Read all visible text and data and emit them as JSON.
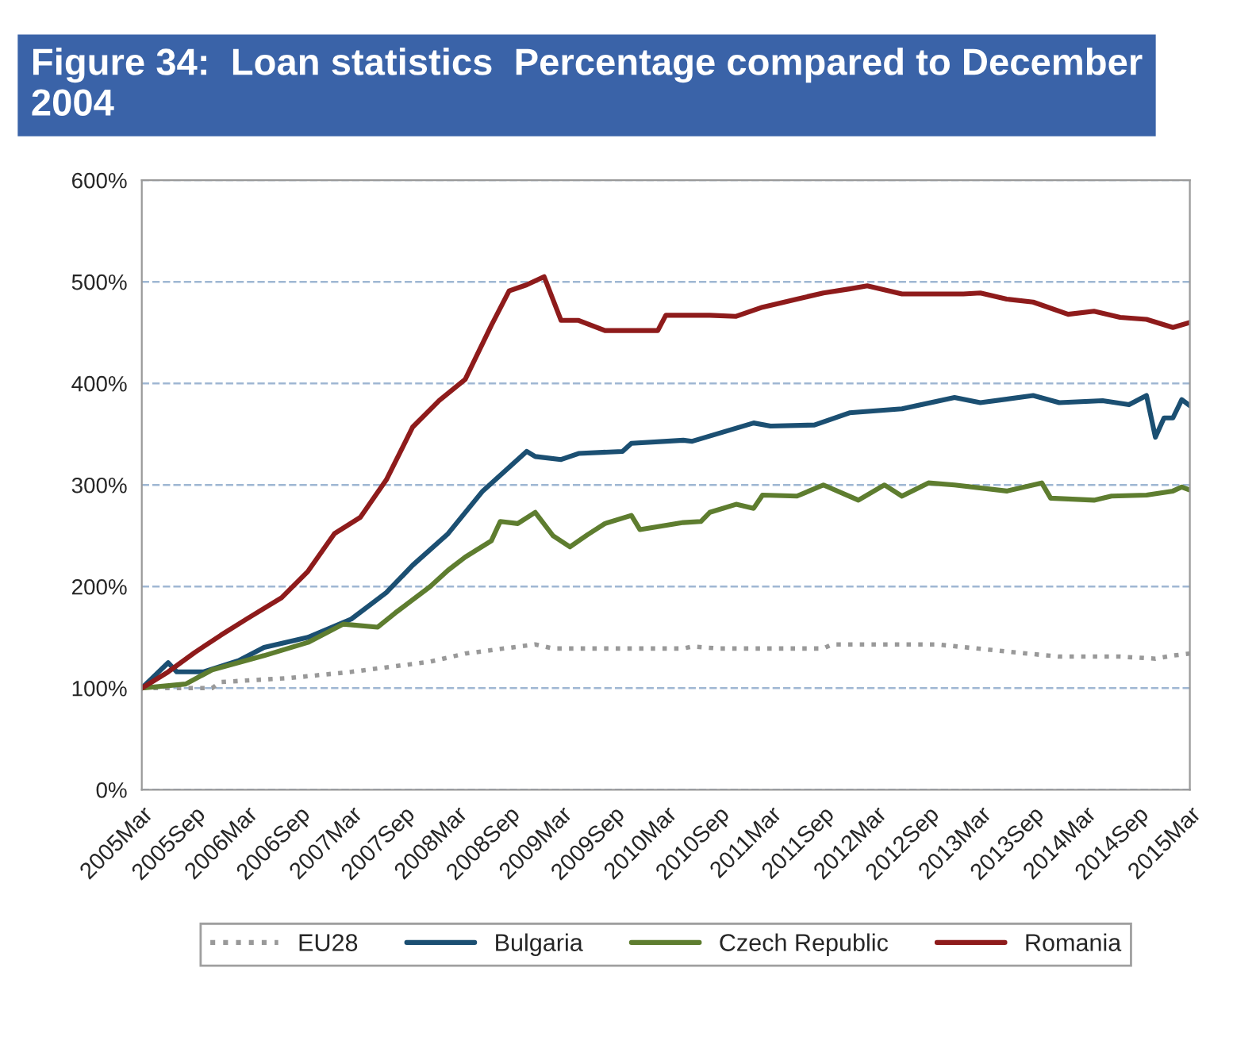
{
  "chart_data": {
    "type": "line",
    "title": "Figure 34:  Loan statistics  Percentage compared to December 2004",
    "xlim": [
      "2005-03",
      "2015-03"
    ],
    "xticks": [
      {
        "value": "2005-03",
        "label": "2005Mar"
      },
      {
        "value": "2005-09",
        "label": "2005Sep"
      },
      {
        "value": "2006-03",
        "label": "2006Mar"
      },
      {
        "value": "2006-09",
        "label": "2006Sep"
      },
      {
        "value": "2007-03",
        "label": "2007Mar"
      },
      {
        "value": "2007-09",
        "label": "2007Sep"
      },
      {
        "value": "2008-03",
        "label": "2008Mar"
      },
      {
        "value": "2008-09",
        "label": "2008Sep"
      },
      {
        "value": "2009-03",
        "label": "2009Mar"
      },
      {
        "value": "2009-09",
        "label": "2009Sep"
      },
      {
        "value": "2010-03",
        "label": "2010Mar"
      },
      {
        "value": "2010-09",
        "label": "2010Sep"
      },
      {
        "value": "2011-03",
        "label": "2011Mar"
      },
      {
        "value": "2011-09",
        "label": "2011Sep"
      },
      {
        "value": "2012-03",
        "label": "2012Mar"
      },
      {
        "value": "2012-09",
        "label": "2012Sep"
      },
      {
        "value": "2013-03",
        "label": "2013Mar"
      },
      {
        "value": "2013-09",
        "label": "2013Sep"
      },
      {
        "value": "2014-03",
        "label": "2014Mar"
      },
      {
        "value": "2014-09",
        "label": "2014Sep"
      },
      {
        "value": "2015-03",
        "label": "2015Mar"
      }
    ],
    "ylim": [
      0,
      600
    ],
    "yticks": [
      {
        "value": 0,
        "label": "0%"
      },
      {
        "value": 100,
        "label": "100%"
      },
      {
        "value": 200,
        "label": "200%"
      },
      {
        "value": 300,
        "label": "300%"
      },
      {
        "value": 400,
        "label": "400%"
      },
      {
        "value": 500,
        "label": "500%"
      },
      {
        "value": 600,
        "label": "600%"
      }
    ],
    "grid": "y",
    "legend": "bottom",
    "series": [
      {
        "name": "EU28",
        "color": "#999999",
        "line_style": "dotted",
        "x": [
          "2005-03",
          "2005-11",
          "2005-12",
          "2006-08",
          "2007-03",
          "2007-12",
          "2008-04",
          "2008-12",
          "2009-02",
          "2010-05",
          "2010-06",
          "2010-09",
          "2011-09",
          "2011-10",
          "2012-10",
          "2013-06",
          "2013-12",
          "2014-07",
          "2014-11",
          "2015-01",
          "2015-03"
        ],
        "values": [
          100,
          100,
          106,
          110,
          116,
          126,
          134,
          143,
          139,
          139,
          141,
          139,
          139,
          143,
          143,
          136,
          131,
          131,
          129,
          132,
          134
        ]
      },
      {
        "name": "Bulgaria",
        "color": "#1b4f72",
        "line_style": "solid",
        "x": [
          "2005-03",
          "2005-06",
          "2005-07",
          "2005-10",
          "2006-02",
          "2006-05",
          "2006-10",
          "2007-03",
          "2007-07",
          "2007-10",
          "2008-02",
          "2008-06",
          "2008-11",
          "2008-12",
          "2009-03",
          "2009-05",
          "2009-10",
          "2009-11",
          "2010-05",
          "2010-06",
          "2011-01",
          "2011-03",
          "2011-08",
          "2011-12",
          "2012-06",
          "2012-12",
          "2013-03",
          "2013-09",
          "2013-12",
          "2014-05",
          "2014-08",
          "2014-10",
          "2014-11",
          "2014-12",
          "2015-01",
          "2015-02",
          "2015-03"
        ],
        "values": [
          100,
          125,
          116,
          116,
          127,
          140,
          150,
          168,
          194,
          221,
          252,
          294,
          333,
          328,
          325,
          331,
          333,
          341,
          344,
          343,
          361,
          358,
          359,
          371,
          375,
          386,
          381,
          388,
          381,
          383,
          379,
          388,
          347,
          366,
          366,
          384,
          378
        ]
      },
      {
        "name": "Czech Republic",
        "color": "#5e7d2f",
        "line_style": "solid",
        "x": [
          "2005-03",
          "2005-08",
          "2005-11",
          "2006-05",
          "2006-10",
          "2007-02",
          "2007-06",
          "2007-08",
          "2007-12",
          "2008-02",
          "2008-04",
          "2008-07",
          "2008-08",
          "2008-10",
          "2008-12",
          "2009-02",
          "2009-04",
          "2009-06",
          "2009-08",
          "2009-11",
          "2009-12",
          "2010-05",
          "2010-07",
          "2010-08",
          "2010-11",
          "2011-01",
          "2011-02",
          "2011-06",
          "2011-09",
          "2012-01",
          "2012-04",
          "2012-06",
          "2012-09",
          "2012-12",
          "2013-06",
          "2013-10",
          "2013-11",
          "2014-04",
          "2014-06",
          "2014-10",
          "2015-01",
          "2015-02",
          "2015-03"
        ],
        "values": [
          100,
          104,
          118,
          132,
          145,
          163,
          160,
          174,
          200,
          216,
          229,
          245,
          264,
          262,
          273,
          250,
          239,
          251,
          262,
          270,
          256,
          263,
          264,
          273,
          281,
          277,
          290,
          289,
          300,
          285,
          300,
          289,
          302,
          300,
          294,
          302,
          287,
          285,
          289,
          290,
          294,
          298,
          295
        ]
      },
      {
        "name": "Romania",
        "color": "#8e1b1b",
        "line_style": "solid",
        "x": [
          "2005-03",
          "2005-06",
          "2005-09",
          "2005-12",
          "2006-03",
          "2006-07",
          "2006-10",
          "2007-01",
          "2007-04",
          "2007-07",
          "2007-10",
          "2008-01",
          "2008-04",
          "2008-07",
          "2008-09",
          "2008-11",
          "2009-01",
          "2009-03",
          "2009-05",
          "2009-08",
          "2009-11",
          "2010-02",
          "2010-03",
          "2010-08",
          "2010-11",
          "2011-02",
          "2011-06",
          "2011-09",
          "2011-12",
          "2012-02",
          "2012-06",
          "2012-09",
          "2013-01",
          "2013-03",
          "2013-06",
          "2013-09",
          "2014-01",
          "2014-04",
          "2014-07",
          "2014-10",
          "2015-01",
          "2015-03"
        ],
        "values": [
          100,
          116,
          135,
          152,
          168,
          189,
          215,
          252,
          268,
          305,
          357,
          383,
          404,
          457,
          491,
          497,
          505,
          462,
          462,
          452,
          452,
          452,
          467,
          467,
          466,
          475,
          483,
          489,
          493,
          496,
          488,
          488,
          488,
          489,
          483,
          480,
          468,
          471,
          465,
          463,
          455,
          460
        ]
      }
    ]
  }
}
